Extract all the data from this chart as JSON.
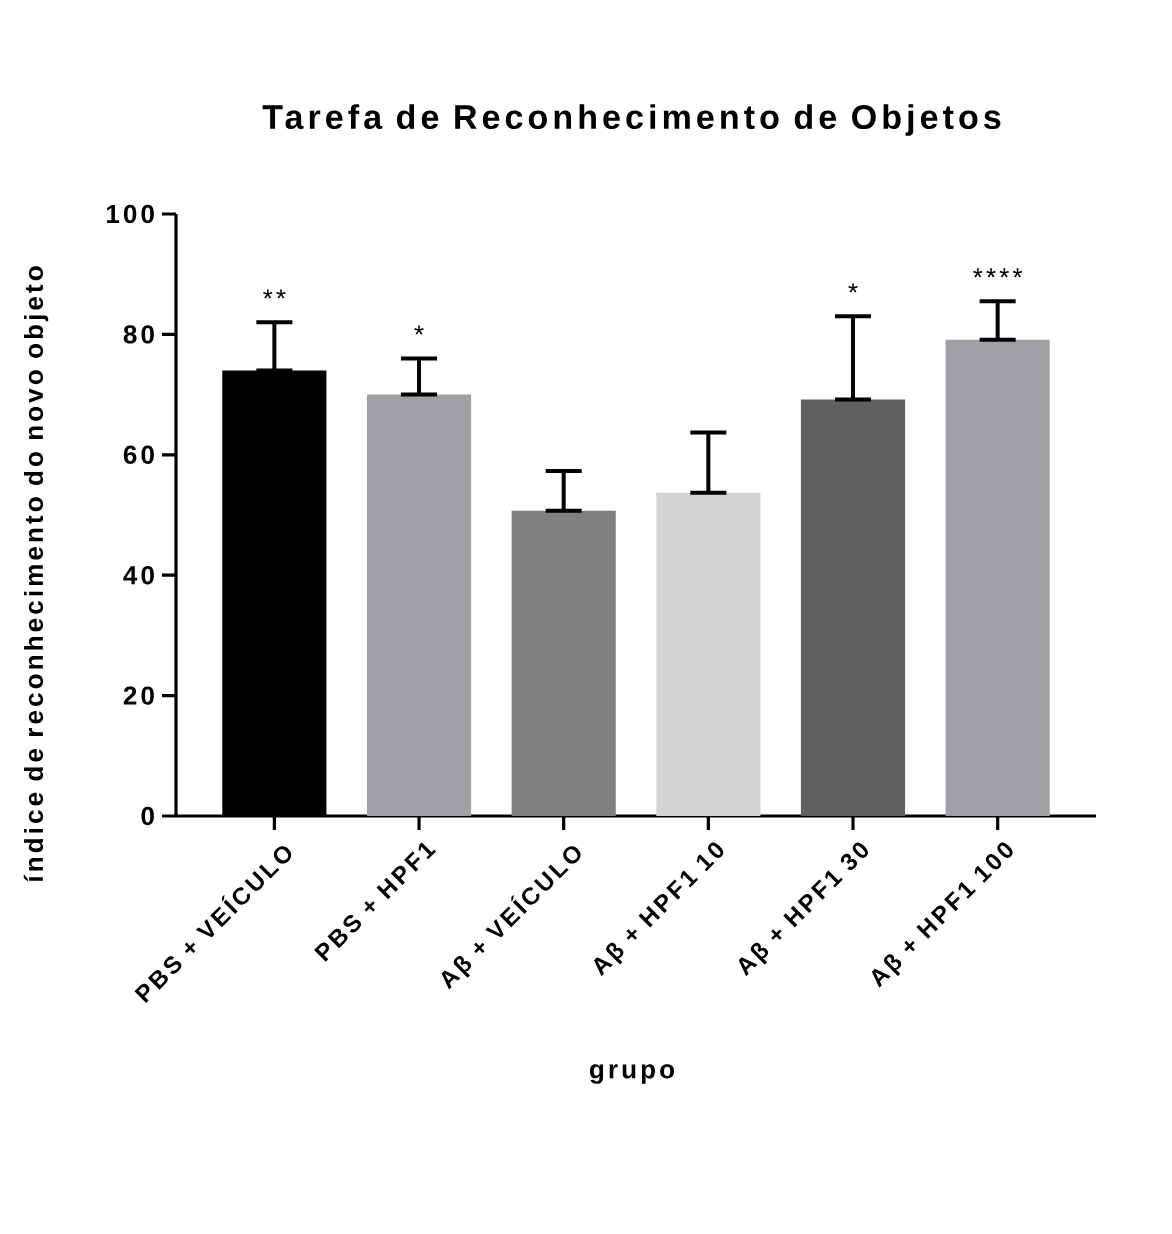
{
  "chart_data": {
    "type": "bar",
    "title": "Tarefa de Reconhecimento de Objetos",
    "xlabel": "grupo",
    "ylabel": "índice de reconhecimento do novo objeto",
    "categories": [
      "PBS + VEÍCULO",
      "PBS + HPF1",
      "Aβ + VEÍCULO",
      "Aβ + HPF1 10",
      "Aβ + HPF1 30",
      "Aβ + HPF1 100"
    ],
    "values": [
      74,
      70,
      50.7,
      53.7,
      69.2,
      79.1
    ],
    "colors": [
      "#000000",
      "#a0a0a4",
      "#808080",
      "#d3d3d3",
      "#606060",
      "#a0a0a4"
    ],
    "errors": [
      [
        74,
        82
      ],
      [
        70,
        76
      ],
      [
        50.7,
        57.3
      ],
      [
        53.7,
        63.7
      ],
      [
        69.2,
        83
      ],
      [
        79.1,
        85.5
      ]
    ],
    "ylim": [
      0,
      100
    ],
    "yticks": [
      0,
      20,
      40,
      60,
      80,
      100
    ],
    "grid": false,
    "annotations": [
      {
        "text": "**",
        "x": "PBS + VEÍCULO",
        "y": 82
      },
      {
        "text": "*",
        "x": "PBS + HPF1",
        "y": 76
      },
      {
        "text": "*",
        "x": "Aβ + HPF1 30",
        "y": 83
      },
      {
        "text": "****",
        "x": "Aβ + HPF1 100",
        "y": 85.5
      }
    ]
  }
}
